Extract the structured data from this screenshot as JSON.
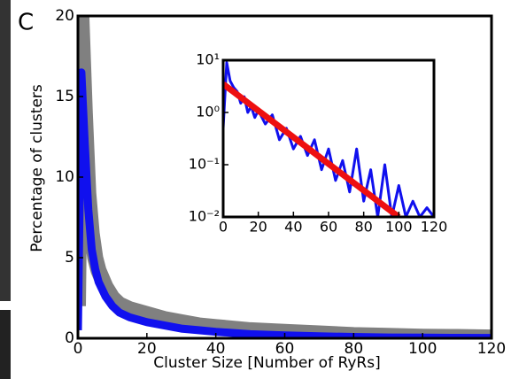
{
  "chart_data": [
    {
      "type": "line",
      "panel_label": "C",
      "xlabel": "Cluster Size [Number of RyRs]",
      "ylabel": "Percentage of clusters",
      "xlim": [
        0,
        120
      ],
      "ylim": [
        0,
        20
      ],
      "xticks": [
        0,
        20,
        40,
        60,
        80,
        100,
        120
      ],
      "yticks": [
        0,
        5,
        10,
        15,
        20
      ],
      "series": [
        {
          "color": "#808080",
          "x": [
            0,
            1,
            2,
            3,
            4,
            5,
            6,
            8,
            10,
            12,
            15,
            20,
            25,
            30,
            35,
            40,
            50,
            60,
            70,
            80,
            90,
            100,
            110,
            120
          ],
          "values": [
            2,
            20,
            14,
            9,
            6.5,
            5,
            4.2,
            3.2,
            2.5,
            2.1,
            1.8,
            1.5,
            1.2,
            1.0,
            0.8,
            0.7,
            0.5,
            0.4,
            0.3,
            0.2,
            0.15,
            0.1,
            0.08,
            0.05
          ]
        },
        {
          "color": "#1010ee",
          "x": [
            0,
            1,
            2,
            3,
            4,
            5,
            6,
            8,
            10,
            12,
            15,
            20,
            25,
            30,
            35,
            40,
            50,
            60,
            70,
            80,
            90,
            100,
            110,
            120
          ],
          "values": [
            0.5,
            16.5,
            12,
            8,
            5.5,
            4.3,
            3.5,
            2.6,
            2,
            1.6,
            1.3,
            1.0,
            0.8,
            0.6,
            0.5,
            0.4,
            0.25,
            0.18,
            0.12,
            0.08,
            0.05,
            0.04,
            0.03,
            0.02
          ]
        }
      ]
    },
    {
      "type": "line",
      "log_y": true,
      "xlim": [
        0,
        120
      ],
      "ylim": [
        0.01,
        10
      ],
      "xticks": [
        0,
        20,
        40,
        60,
        80,
        100,
        120
      ],
      "yticks": [
        {
          "value": 10,
          "label": "10¹"
        },
        {
          "value": 1,
          "label": "10⁰"
        },
        {
          "value": 0.1,
          "label": "10⁻¹"
        },
        {
          "value": 0.01,
          "label": "10⁻²"
        }
      ],
      "series": [
        {
          "color": "#1010ee",
          "x": [
            0,
            2,
            4,
            6,
            8,
            10,
            12,
            14,
            16,
            18,
            20,
            24,
            28,
            32,
            36,
            40,
            44,
            48,
            52,
            56,
            60,
            64,
            68,
            72,
            76,
            80,
            84,
            88,
            92,
            96,
            100,
            104,
            108,
            112,
            116,
            120
          ],
          "values": [
            0.5,
            9,
            4,
            3,
            2.5,
            1.5,
            2,
            1,
            1.3,
            0.8,
            1.1,
            0.6,
            0.9,
            0.3,
            0.5,
            0.2,
            0.35,
            0.15,
            0.3,
            0.08,
            0.2,
            0.05,
            0.12,
            0.03,
            0.2,
            0.02,
            0.08,
            0.01,
            0.1,
            0.01,
            0.04,
            0.01,
            0.02,
            0.01,
            0.015,
            0.01
          ]
        },
        {
          "color": "#ee1010",
          "x": [
            0,
            100
          ],
          "values": [
            3.5,
            0.01
          ]
        }
      ]
    }
  ]
}
